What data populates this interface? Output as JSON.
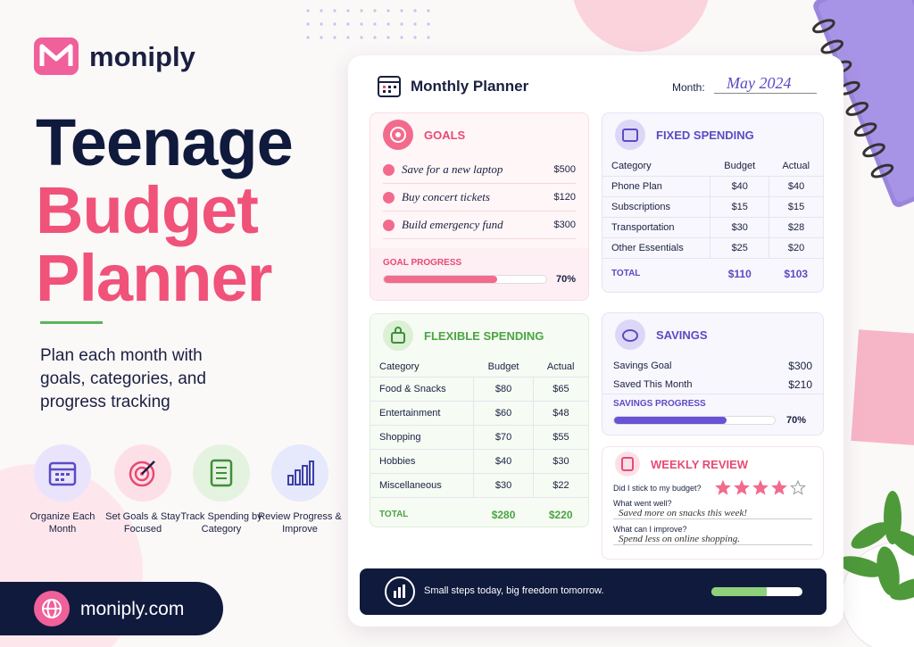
{
  "brand": {
    "name": "moniply"
  },
  "hero": {
    "title_line1": "Teenage",
    "title_line2": "Budget",
    "title_line3": "Planner",
    "subtitle": "Plan each month with goals, categories, and progress tracking"
  },
  "features": [
    {
      "label": "Organize Each Month"
    },
    {
      "label": "Set Goals & Stay Focused"
    },
    {
      "label": "Track Spending by Category"
    },
    {
      "label": "Review Progress & Improve"
    }
  ],
  "website": "moniply.com",
  "planner": {
    "title": "Monthly Planner",
    "month_label": "Month:",
    "month": "May 2024",
    "goals": {
      "title": "GOALS",
      "items": [
        {
          "text": "Save for a new laptop",
          "amount": "$500"
        },
        {
          "text": "Buy concert tickets",
          "amount": "$120"
        },
        {
          "text": "Build emergency fund",
          "amount": "$300"
        }
      ],
      "progress_label": "GOAL PROGRESS",
      "progress": 70,
      "progress_text": "70%"
    },
    "fixed": {
      "title": "FIXED SPENDING",
      "columns": [
        "Category",
        "Budget",
        "Actual"
      ],
      "rows": [
        [
          "Phone Plan",
          "$40",
          "$40"
        ],
        [
          "Subscriptions",
          "$15",
          "$15"
        ],
        [
          "Transportation",
          "$30",
          "$28"
        ],
        [
          "Other Essentials",
          "$25",
          "$20"
        ]
      ],
      "total": [
        "TOTAL",
        "$110",
        "$103"
      ]
    },
    "flexible": {
      "title": "FLEXIBLE SPENDING",
      "columns": [
        "Category",
        "Budget",
        "Actual"
      ],
      "rows": [
        [
          "Food & Snacks",
          "$80",
          "$65"
        ],
        [
          "Entertainment",
          "$60",
          "$48"
        ],
        [
          "Shopping",
          "$70",
          "$55"
        ],
        [
          "Hobbies",
          "$40",
          "$30"
        ],
        [
          "Miscellaneous",
          "$30",
          "$22"
        ]
      ],
      "total": [
        "TOTAL",
        "$280",
        "$220"
      ]
    },
    "savings": {
      "title": "SAVINGS",
      "rows": [
        [
          "Savings Goal",
          "$300"
        ],
        [
          "Saved This Month",
          "$210"
        ]
      ],
      "progress_label": "SAVINGS PROGRESS",
      "progress": 70,
      "progress_text": "70%"
    },
    "review": {
      "title": "WEEKLY REVIEW",
      "question1": "Did I stick to my budget?",
      "rating": 4,
      "rating_max": 5,
      "question2": "What went well?",
      "answer2": "Saved more on snacks this week!",
      "question3": "What can I improve?",
      "answer3": "Spend less on online shopping."
    },
    "footer": "Small steps today, big freedom tomorrow."
  }
}
